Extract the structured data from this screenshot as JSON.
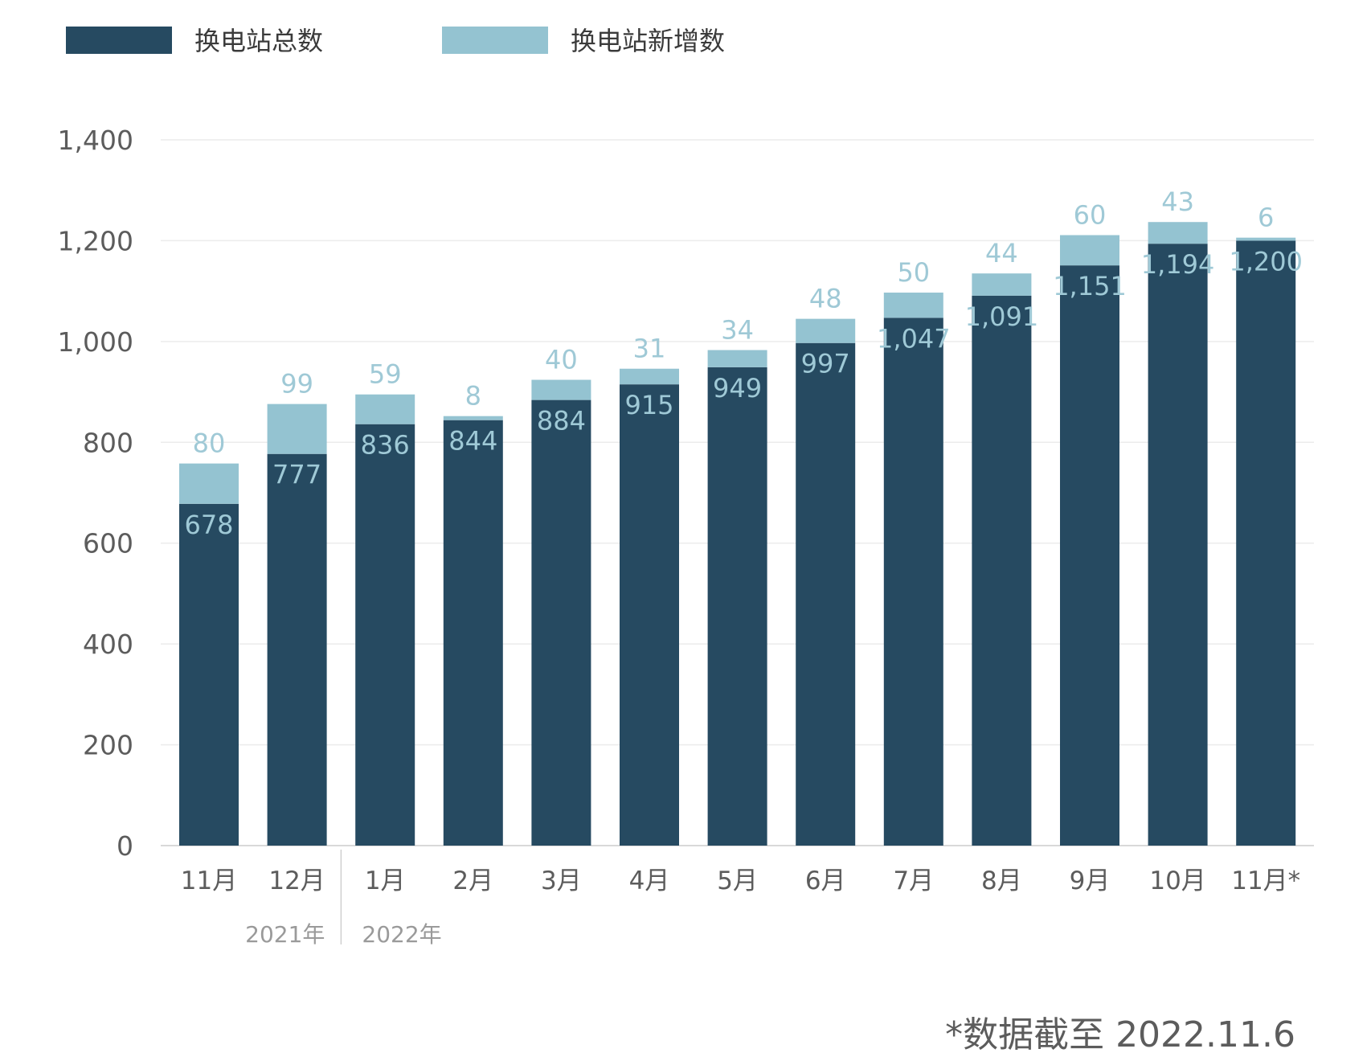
{
  "chart_data": {
    "type": "bar",
    "stacked": true,
    "categories": [
      "11月",
      "12月",
      "1月",
      "2月",
      "3月",
      "4月",
      "5月",
      "6月",
      "7月",
      "8月",
      "9月",
      "10月",
      "11月*"
    ],
    "series": [
      {
        "name": "换电站总数",
        "color": "#264a61",
        "values": [
          678,
          777,
          836,
          844,
          884,
          915,
          949,
          997,
          1047,
          1091,
          1151,
          1194,
          1200
        ],
        "labels": [
          "678",
          "777",
          "836",
          "844",
          "884",
          "915",
          "949",
          "997",
          "1,047",
          "1,091",
          "1,151",
          "1,194",
          "1,200"
        ]
      },
      {
        "name": "换电站新增数",
        "color": "#94c3d1",
        "values": [
          80,
          99,
          59,
          8,
          40,
          31,
          34,
          48,
          50,
          44,
          60,
          43,
          6
        ],
        "labels": [
          "80",
          "99",
          "59",
          "8",
          "40",
          "31",
          "34",
          "48",
          "50",
          "44",
          "60",
          "43",
          "6"
        ]
      }
    ],
    "ylim": [
      0,
      1400
    ],
    "yticks": [
      0,
      200,
      400,
      600,
      800,
      1000,
      1200,
      1400
    ],
    "ytick_labels": [
      "0",
      "200",
      "400",
      "600",
      "800",
      "1,000",
      "1,200",
      "1,400"
    ],
    "year_groups": [
      {
        "label": "2021年",
        "categories": [
          "11月",
          "12月"
        ]
      },
      {
        "label": "2022年",
        "categories": [
          "1月",
          "2月",
          "3月",
          "4月",
          "5月",
          "6月",
          "7月",
          "8月",
          "9月",
          "10月",
          "11月*"
        ]
      }
    ],
    "grid": true,
    "legend_position": "top-left",
    "footnote": "*数据截至 2022.11.6"
  }
}
